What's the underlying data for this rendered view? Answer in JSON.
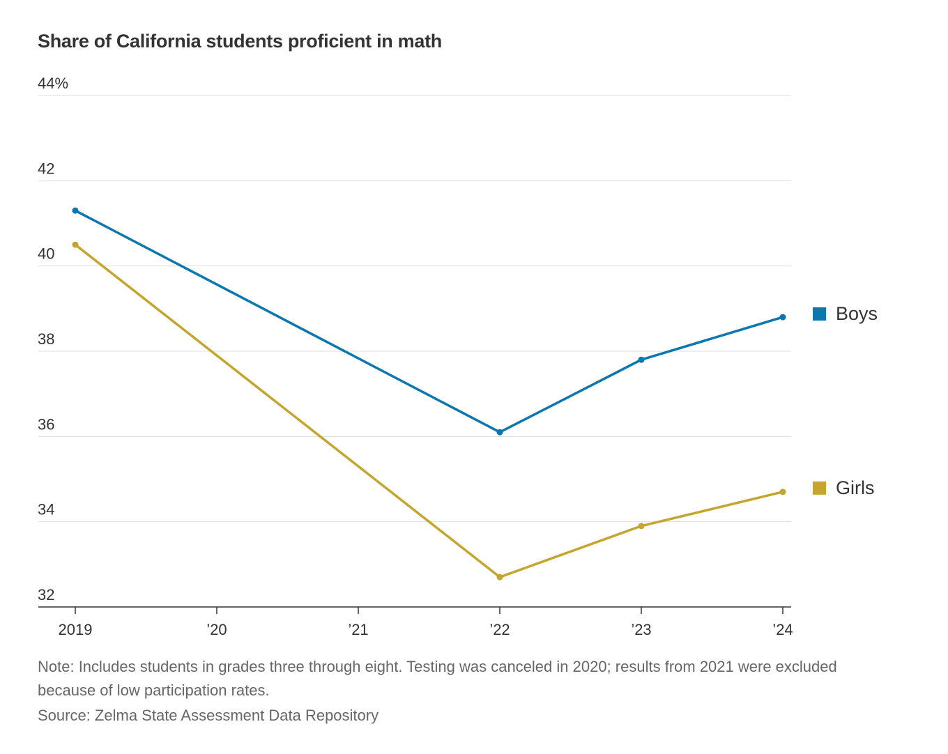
{
  "chart_data": {
    "type": "line",
    "title": "Share of California students proficient in math",
    "xlabel": "",
    "ylabel": "",
    "x": [
      2019,
      2020,
      2021,
      2022,
      2023,
      2024
    ],
    "x_tick_labels": [
      "2019",
      "’20",
      "’21",
      "’22",
      "’23",
      "’24"
    ],
    "ylim": [
      32,
      44
    ],
    "y_ticks": [
      32,
      34,
      36,
      38,
      40,
      42,
      44
    ],
    "y_tick_labels": [
      "32",
      "34",
      "36",
      "38",
      "40",
      "42",
      "44%"
    ],
    "grid": true,
    "legend_placement": "right",
    "series": [
      {
        "name": "Boys",
        "color": "#0a77b0",
        "x": [
          2019,
          2022,
          2023,
          2024
        ],
        "values": [
          41.3,
          36.1,
          37.8,
          38.8
        ]
      },
      {
        "name": "Girls",
        "color": "#c4a52e",
        "x": [
          2019,
          2022,
          2023,
          2024
        ],
        "values": [
          40.5,
          32.7,
          33.9,
          34.7
        ]
      }
    ]
  },
  "notes": {
    "note": "Note: Includes students in grades three through eight. Testing was canceled in 2020; results from 2021 were excluded because of low participation rates.",
    "source": "Source: Zelma State Assessment Data Repository"
  }
}
